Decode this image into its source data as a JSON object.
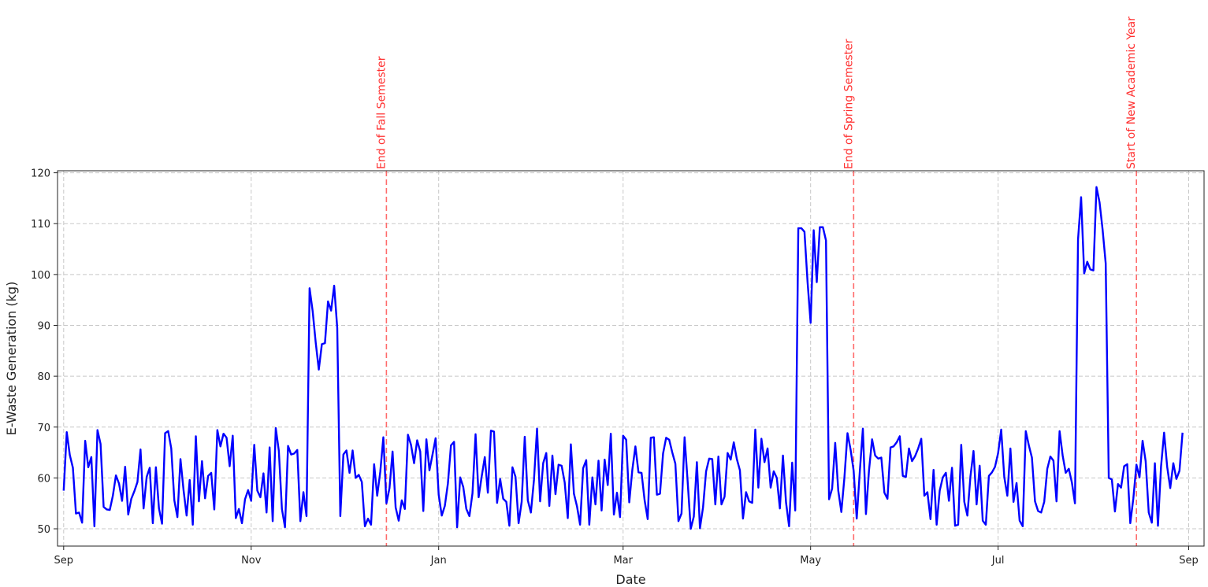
{
  "chart_data": {
    "type": "line",
    "xlabel": "Date",
    "ylabel": "E-Waste Generation (kg)",
    "x_range": [
      "2023-08-30",
      "2024-09-06"
    ],
    "ylim": [
      46.6,
      120.4
    ],
    "grid": true,
    "x_ticks": [
      {
        "date": "2023-09-01",
        "label": "Sep"
      },
      {
        "date": "2023-11-01",
        "label": "Nov"
      },
      {
        "date": "2024-01-01",
        "label": "Jan"
      },
      {
        "date": "2024-03-01",
        "label": "Mar"
      },
      {
        "date": "2024-05-01",
        "label": "May"
      },
      {
        "date": "2024-07-01",
        "label": "Jul"
      },
      {
        "date": "2024-09-01",
        "label": "Sep"
      }
    ],
    "y_ticks": [
      50,
      60,
      70,
      80,
      90,
      100,
      110,
      120
    ],
    "annotations": [
      {
        "date": "2023-12-15",
        "label": "End of Fall Semester"
      },
      {
        "date": "2024-05-15",
        "label": "End of Spring Semester"
      },
      {
        "date": "2024-08-15",
        "label": "Start of New Academic Year"
      }
    ],
    "series": [
      {
        "color": "#0000ff",
        "start_date": "2023-09-01",
        "values": [
          57.5,
          69,
          64.5,
          62,
          53,
          53.2,
          51.2,
          67.3,
          62.1,
          64.1,
          50.5,
          69.4,
          66.7,
          54.3,
          53.8,
          53.7,
          56.5,
          60.5,
          58.9,
          55.5,
          62.2,
          52.8,
          55.9,
          57.4,
          59.2,
          65.6,
          54,
          60.2,
          62,
          51.1,
          62.1,
          54,
          51,
          68.8,
          69.2,
          65.8,
          55.6,
          52.3,
          63.7,
          57.6,
          52.6,
          59.6,
          50.8,
          68.2,
          55.4,
          63.3,
          56,
          60.4,
          61,
          53.8,
          69.4,
          66.2,
          68.7,
          67.9,
          62.3,
          68.3,
          52.1,
          53.9,
          51.1,
          55.8,
          57.6,
          55.5,
          66.5,
          57.5,
          56.2,
          60.9,
          53.2,
          66,
          51.5,
          69.8,
          65.3,
          53.9,
          50.3,
          66.3,
          64.6,
          64.8,
          65.5,
          51.5,
          57.2,
          52.5,
          97.3,
          92.8,
          86.6,
          81.3,
          86.3,
          86.5,
          94.7,
          92.9,
          97.8,
          89.5,
          52.5,
          64.6,
          65.4,
          61,
          65.4,
          60,
          60.6,
          59.2,
          50.5,
          52,
          50.8,
          62.7,
          56.5,
          61.2,
          68,
          55,
          58,
          65.2,
          54.2,
          51.6,
          55.6,
          53.9,
          68.5,
          66.5,
          62.9,
          67.4,
          65.2,
          53.5,
          67.6,
          61.5,
          64.6,
          67.8,
          56.7,
          52.6,
          54.5,
          58.9,
          66.4,
          67.1,
          50.3,
          60.1,
          58.2,
          53.9,
          52.5,
          57,
          68.6,
          56.2,
          60.3,
          64.1,
          57.1,
          69.3,
          69.1,
          55.1,
          59.8,
          55.9,
          55.3,
          50.6,
          62.1,
          60.2,
          51.1,
          55.3,
          68.1,
          55.6,
          53.2,
          59.6,
          69.7,
          55.4,
          62.9,
          64.9,
          54.5,
          64.4,
          56.8,
          62.6,
          62.4,
          59.1,
          52.1,
          66.6,
          56.9,
          54.4,
          50.8,
          61.9,
          63.5,
          50.8,
          60.1,
          54.8,
          63.4,
          53.6,
          63.6,
          58.6,
          68.7,
          52.8,
          57.1,
          52.3,
          68.3,
          67.5,
          55.2,
          61.6,
          66.2,
          61.1,
          61,
          55.6,
          51.9,
          67.9,
          68,
          56.7,
          56.9,
          64.8,
          67.9,
          67.5,
          65,
          62.8,
          51.5,
          53,
          68,
          59.3,
          50,
          52.4,
          63.1,
          50.1,
          54.2,
          61.3,
          63.8,
          63.7,
          54.8,
          64.2,
          54.8,
          56.3,
          64.9,
          63.6,
          67,
          63.7,
          61.5,
          52,
          57.2,
          55.4,
          55.1,
          69.5,
          58.1,
          67.7,
          63.1,
          65.8,
          58.1,
          61.3,
          60,
          54,
          64.4,
          55.2,
          50.5,
          63,
          53.6,
          109.1,
          109.1,
          108.4,
          98.6,
          90.5,
          108.7,
          98.5,
          109.3,
          109.3,
          106.7,
          55.8,
          57.9,
          66.9,
          57.5,
          53.3,
          60.1,
          68.8,
          65.6,
          61.4,
          52,
          61.2,
          69.7,
          52.9,
          61.5,
          67.6,
          64.4,
          63.8,
          64,
          57.1,
          55.9,
          66,
          66.2,
          67,
          68.2,
          60.4,
          60.2,
          65.8,
          63.3,
          64.3,
          65.8,
          67.7,
          56.5,
          57.2,
          51.9,
          61.6,
          50.8,
          57.5,
          60.1,
          61,
          55.5,
          62,
          50.6,
          50.8,
          66.5,
          55.3,
          52.6,
          60.3,
          65.3,
          54.8,
          62.4,
          51.6,
          50.8,
          60.4,
          61.1,
          62.2,
          64.9,
          69.5,
          60.2,
          56.5,
          65.8,
          55.3,
          59,
          51.6,
          50.5,
          69.2,
          66.4,
          64,
          55.4,
          53.5,
          53.2,
          55.3,
          61.8,
          64.2,
          63.4,
          55.4,
          69.2,
          64.4,
          61,
          61.8,
          59.1,
          55,
          106.9,
          115.2,
          100.2,
          102.5,
          101,
          100.8,
          117.2,
          114.2,
          108.8,
          102.2,
          60,
          59.7,
          53.4,
          58.8,
          58.1,
          62.3,
          62.7,
          51.1,
          56,
          62.6,
          60.1,
          67.3,
          63.3,
          53.2,
          51.2,
          62.9,
          50.6,
          62.2,
          68.9,
          62.2,
          58,
          62.9,
          59.8,
          61.4,
          68.9
        ]
      }
    ]
  }
}
